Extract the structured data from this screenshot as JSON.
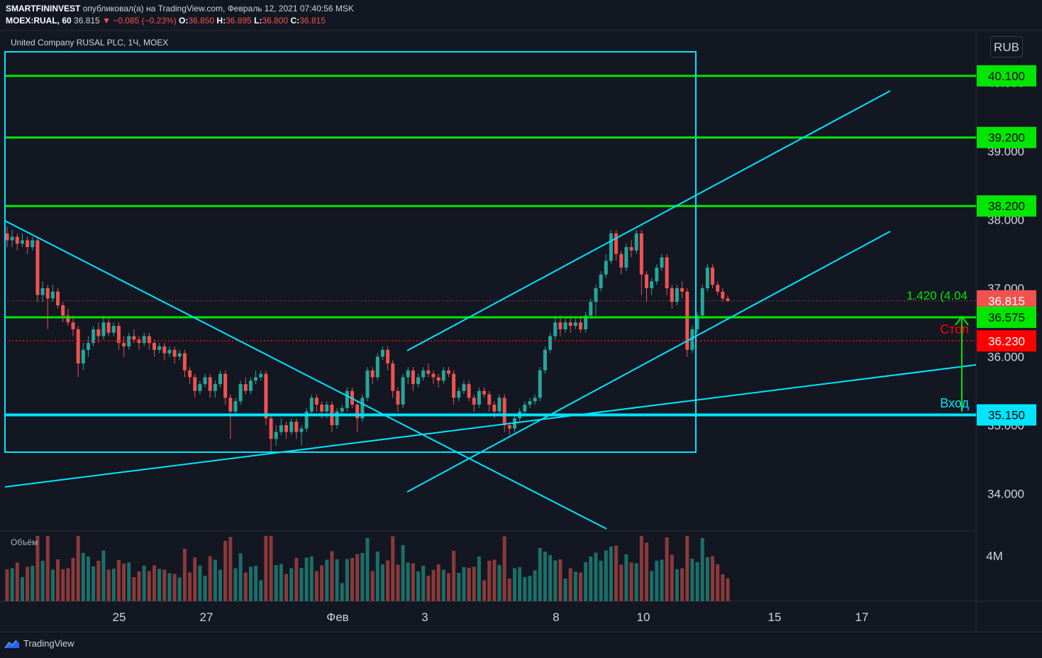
{
  "header": {
    "publisher": "SMARTFININVEST",
    "published_text": "опубликовал(а) на TradingView.com, Февраль 12, 2021 07:40:56 MSK",
    "symbol": "MOEX:RUAL, 60",
    "last": "36.815",
    "change": "▼ −0.085 (−0.23%)",
    "o_label": "O:",
    "o": "36.850",
    "h_label": "H:",
    "h": "36.895",
    "l_label": "L:",
    "l": "36.800",
    "c_label": "C:",
    "c": "36.815"
  },
  "pane_title": "United Company RUSAL PLC, 1Ч, MOEX",
  "volume_title": "Объём",
  "currency": "RUB",
  "branding": "TradingView",
  "colors": {
    "background": "#131722",
    "up": "#26a69a",
    "down": "#ef5350",
    "level": "#00e600",
    "cyan": "#00e5ff",
    "stop": "#ff0000"
  },
  "chart_data": {
    "type": "candlestick",
    "y_ticks": [
      "34.000",
      "35.000",
      "36.000",
      "37.000",
      "38.000",
      "39.000",
      "40.000"
    ],
    "x_ticks": [
      "25",
      "27",
      "Фев",
      "3",
      "8",
      "10",
      "15",
      "17"
    ],
    "volume_tick": "4M",
    "price_labels": [
      {
        "value": 40.1,
        "text": "40.100",
        "color": "#00e600"
      },
      {
        "value": 39.2,
        "text": "39.200",
        "color": "#00e600"
      },
      {
        "value": 38.2,
        "text": "38.200",
        "color": "#00e600"
      },
      {
        "value": 36.815,
        "text": "36.815",
        "color": "#ef5350"
      },
      {
        "value": 36.575,
        "text": "36.575",
        "color": "#00e600"
      },
      {
        "value": 36.23,
        "text": "36.230",
        "color": "#ff0000"
      },
      {
        "value": 35.15,
        "text": "35.150",
        "color": "#00e5ff"
      }
    ],
    "annotations": {
      "stop": "Стоп",
      "entry": "Вход",
      "measure": "1.420 (4.04"
    },
    "candles": [
      [
        37.8,
        37.7,
        37.9,
        37.6
      ],
      [
        37.7,
        37.75,
        37.85,
        37.6
      ],
      [
        37.75,
        37.65,
        37.8,
        37.55
      ],
      [
        37.65,
        37.7,
        37.8,
        37.6
      ],
      [
        37.7,
        37.6,
        37.75,
        37.5
      ],
      [
        37.6,
        37.7,
        37.75,
        37.55
      ],
      [
        37.7,
        36.9,
        37.75,
        36.8
      ],
      [
        36.9,
        37.0,
        37.1,
        36.8
      ],
      [
        37.0,
        36.85,
        37.05,
        36.4
      ],
      [
        36.85,
        36.95,
        37.05,
        36.8
      ],
      [
        36.95,
        36.75,
        37.0,
        36.7
      ],
      [
        36.75,
        36.6,
        36.8,
        36.5
      ],
      [
        36.6,
        36.5,
        36.7,
        36.45
      ],
      [
        36.5,
        36.4,
        36.6,
        36.3
      ],
      [
        36.4,
        35.9,
        36.45,
        35.7
      ],
      [
        35.9,
        36.1,
        36.2,
        35.8
      ],
      [
        36.1,
        36.2,
        36.3,
        36.0
      ],
      [
        36.2,
        36.4,
        36.45,
        36.15
      ],
      [
        36.4,
        36.3,
        36.5,
        36.2
      ],
      [
        36.3,
        36.5,
        36.6,
        36.25
      ],
      [
        36.5,
        36.35,
        36.55,
        36.3
      ],
      [
        36.35,
        36.45,
        36.5,
        36.3
      ],
      [
        36.45,
        36.2,
        36.5,
        36.1
      ],
      [
        36.2,
        36.15,
        36.3,
        36.0
      ],
      [
        36.15,
        36.3,
        36.35,
        36.1
      ],
      [
        36.3,
        36.25,
        36.4,
        36.2
      ],
      [
        36.25,
        36.2,
        36.3,
        36.1
      ],
      [
        36.2,
        36.3,
        36.35,
        36.15
      ],
      [
        36.3,
        36.2,
        36.35,
        36.1
      ],
      [
        36.2,
        36.1,
        36.25,
        36.0
      ],
      [
        36.1,
        36.15,
        36.2,
        36.05
      ],
      [
        36.15,
        36.05,
        36.2,
        35.95
      ],
      [
        36.05,
        36.1,
        36.15,
        36.0
      ],
      [
        36.1,
        36.0,
        36.15,
        35.9
      ],
      [
        36.0,
        36.05,
        36.1,
        35.95
      ],
      [
        36.05,
        35.8,
        36.1,
        35.7
      ],
      [
        35.8,
        35.7,
        35.85,
        35.6
      ],
      [
        35.7,
        35.5,
        35.75,
        35.4
      ],
      [
        35.5,
        35.6,
        35.65,
        35.45
      ],
      [
        35.6,
        35.7,
        35.75,
        35.55
      ],
      [
        35.7,
        35.5,
        35.75,
        35.4
      ],
      [
        35.5,
        35.6,
        35.65,
        35.4
      ],
      [
        35.6,
        35.75,
        35.8,
        35.55
      ],
      [
        35.75,
        35.4,
        35.8,
        35.3
      ],
      [
        35.4,
        35.2,
        35.45,
        34.8
      ],
      [
        35.2,
        35.35,
        35.4,
        35.15
      ],
      [
        35.35,
        35.6,
        35.65,
        35.3
      ],
      [
        35.6,
        35.5,
        35.7,
        35.45
      ],
      [
        35.5,
        35.65,
        35.7,
        35.45
      ],
      [
        35.65,
        35.7,
        35.8,
        35.6
      ],
      [
        35.7,
        35.75,
        35.8,
        35.65
      ],
      [
        35.75,
        35.1,
        35.8,
        35.0
      ],
      [
        35.1,
        34.8,
        35.15,
        34.6
      ],
      [
        34.8,
        34.9,
        35.0,
        34.7
      ],
      [
        34.9,
        35.0,
        35.1,
        34.85
      ],
      [
        35.0,
        34.9,
        35.05,
        34.8
      ],
      [
        34.9,
        35.05,
        35.1,
        34.85
      ],
      [
        35.05,
        34.9,
        35.1,
        34.8
      ],
      [
        34.9,
        34.95,
        35.0,
        34.7
      ],
      [
        34.95,
        35.2,
        35.25,
        34.9
      ],
      [
        35.2,
        35.4,
        35.45,
        35.15
      ],
      [
        35.4,
        35.3,
        35.45,
        35.2
      ],
      [
        35.3,
        35.2,
        35.35,
        35.1
      ],
      [
        35.2,
        35.3,
        35.35,
        35.1
      ],
      [
        35.3,
        35.0,
        35.35,
        34.9
      ],
      [
        35.0,
        35.2,
        35.25,
        34.95
      ],
      [
        35.2,
        35.25,
        35.3,
        35.15
      ],
      [
        35.25,
        35.5,
        35.55,
        35.2
      ],
      [
        35.5,
        35.3,
        35.55,
        35.25
      ],
      [
        35.3,
        35.1,
        35.35,
        34.9
      ],
      [
        35.1,
        35.4,
        35.45,
        35.05
      ],
      [
        35.4,
        35.8,
        35.85,
        35.35
      ],
      [
        35.8,
        35.7,
        35.85,
        35.6
      ],
      [
        35.7,
        36.0,
        36.05,
        35.65
      ],
      [
        36.0,
        36.1,
        36.15,
        35.95
      ],
      [
        36.1,
        35.9,
        36.15,
        35.8
      ],
      [
        35.9,
        35.5,
        35.95,
        35.4
      ],
      [
        35.5,
        35.3,
        35.55,
        35.2
      ],
      [
        35.3,
        35.7,
        35.75,
        35.25
      ],
      [
        35.7,
        35.8,
        35.85,
        35.6
      ],
      [
        35.8,
        35.6,
        35.85,
        35.5
      ],
      [
        35.6,
        35.7,
        35.75,
        35.55
      ],
      [
        35.7,
        35.8,
        35.85,
        35.65
      ],
      [
        35.8,
        35.75,
        35.9,
        35.7
      ],
      [
        35.75,
        35.7,
        35.8,
        35.6
      ],
      [
        35.7,
        35.65,
        35.75,
        35.55
      ],
      [
        35.65,
        35.8,
        35.85,
        35.6
      ],
      [
        35.8,
        35.75,
        35.85,
        35.7
      ],
      [
        35.75,
        35.4,
        35.8,
        35.3
      ],
      [
        35.4,
        35.5,
        35.55,
        35.35
      ],
      [
        35.5,
        35.6,
        35.65,
        35.45
      ],
      [
        35.6,
        35.4,
        35.65,
        35.35
      ],
      [
        35.4,
        35.3,
        35.45,
        35.2
      ],
      [
        35.3,
        35.5,
        35.55,
        35.25
      ],
      [
        35.5,
        35.45,
        35.55,
        35.4
      ],
      [
        35.45,
        35.3,
        35.5,
        35.2
      ],
      [
        35.3,
        35.2,
        35.35,
        35.1
      ],
      [
        35.2,
        35.4,
        35.45,
        35.15
      ],
      [
        35.4,
        35.0,
        35.45,
        34.9
      ],
      [
        35.0,
        34.95,
        35.05,
        34.85
      ],
      [
        34.95,
        35.1,
        35.15,
        34.9
      ],
      [
        35.1,
        35.2,
        35.25,
        35.05
      ],
      [
        35.2,
        35.3,
        35.35,
        35.15
      ],
      [
        35.3,
        35.35,
        35.4,
        35.25
      ],
      [
        35.35,
        35.4,
        35.45,
        35.3
      ],
      [
        35.4,
        35.8,
        35.85,
        35.35
      ],
      [
        35.8,
        36.1,
        36.15,
        35.75
      ],
      [
        36.1,
        36.3,
        36.35,
        36.05
      ],
      [
        36.3,
        36.5,
        36.6,
        36.25
      ],
      [
        36.5,
        36.4,
        36.6,
        36.3
      ],
      [
        36.4,
        36.5,
        36.55,
        36.35
      ],
      [
        36.5,
        36.45,
        36.6,
        36.35
      ],
      [
        36.45,
        36.5,
        36.55,
        36.4
      ],
      [
        36.5,
        36.4,
        36.6,
        36.35
      ],
      [
        36.4,
        36.6,
        36.65,
        36.35
      ],
      [
        36.6,
        36.8,
        36.85,
        36.55
      ],
      [
        36.8,
        37.0,
        37.05,
        36.6
      ],
      [
        37.0,
        37.2,
        37.25,
        36.95
      ],
      [
        37.2,
        37.4,
        37.5,
        37.15
      ],
      [
        37.4,
        37.8,
        37.85,
        37.35
      ],
      [
        37.8,
        37.5,
        37.85,
        37.4
      ],
      [
        37.5,
        37.3,
        37.55,
        37.2
      ],
      [
        37.3,
        37.6,
        37.65,
        37.25
      ],
      [
        37.6,
        37.55,
        37.7,
        37.45
      ],
      [
        37.55,
        37.8,
        37.85,
        37.5
      ],
      [
        37.8,
        37.2,
        37.85,
        36.9
      ],
      [
        37.2,
        37.0,
        37.25,
        36.8
      ],
      [
        37.0,
        37.1,
        37.15,
        36.9
      ],
      [
        37.1,
        37.3,
        37.35,
        37.05
      ],
      [
        37.3,
        37.45,
        37.5,
        37.25
      ],
      [
        37.45,
        37.0,
        37.5,
        36.9
      ],
      [
        37.0,
        36.8,
        37.05,
        36.7
      ],
      [
        36.8,
        37.0,
        37.05,
        36.75
      ],
      [
        37.0,
        36.95,
        37.1,
        36.85
      ],
      [
        36.95,
        36.1,
        37.0,
        36.0
      ],
      [
        36.1,
        36.4,
        36.45,
        36.05
      ],
      [
        36.4,
        36.6,
        36.65,
        36.35
      ],
      [
        36.6,
        37.0,
        37.05,
        36.55
      ],
      [
        37.0,
        37.3,
        37.35,
        36.95
      ],
      [
        37.3,
        37.05,
        37.35,
        37.0
      ],
      [
        37.05,
        36.95,
        37.1,
        36.9
      ],
      [
        36.95,
        36.85,
        37.0,
        36.8
      ],
      [
        36.85,
        36.815,
        36.895,
        36.8
      ]
    ]
  }
}
